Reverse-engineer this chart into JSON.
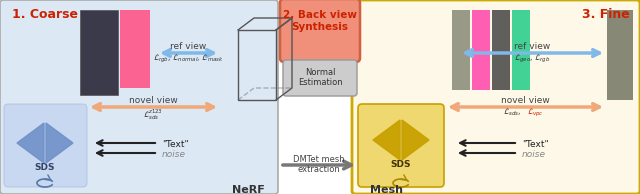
{
  "bg_color": "#ffffff",
  "coarse_box_color": "#dde8f5",
  "coarse_box_edge": "#aaaaaa",
  "fine_box_color": "#fdf8e8",
  "fine_box_edge": "#ccaa00",
  "back_box_color": "#f0907a",
  "back_box_edge": "#d06040",
  "normal_box_color": "#cccccc",
  "normal_box_edge": "#999999",
  "sds_coarse_bg": "#c8d8f0",
  "sds_coarse_tri": "#7090c8",
  "sds_fine_bg": "#f0d870",
  "sds_fine_tri": "#c8a000",
  "sds_fine_border": "#c8a000",
  "arrow_blue": "#80b8e8",
  "arrow_orange": "#f0a878",
  "arrow_black": "#222222",
  "label_coarse": "1. Coarse",
  "label_fine": "3. Fine",
  "label_back_line1": "2. Back view",
  "label_back_line2": "Synthesis",
  "label_normal_line1": "Normal",
  "label_normal_line2": "Estimation",
  "label_nerf": "NeRF",
  "label_mesh": "Mesh",
  "label_dmtet_line1": "DMTet mesh",
  "label_dmtet_line2": "extraction",
  "ref_view": "ref view",
  "novel_view": "novel view",
  "loss_coarse_ref": "$\\mathcal{L}_{rgb}$, $\\mathcal{L}_{normal}$, $\\mathcal{L}_{mask}$",
  "loss_coarse_novel": "$\\mathcal{L}^{z123}_{sds}$",
  "loss_fine_ref": "$\\mathcal{L}_{geo}$, $\\mathcal{L}_{rgb}$",
  "loss_fine_novel_black": "$\\mathcal{L}_{sds}$, ",
  "loss_fine_novel_red": "$\\mathcal{L}_{vpc}$",
  "text_label": "\"Text\"",
  "noise_label": "noise",
  "sds_label": "SDS"
}
